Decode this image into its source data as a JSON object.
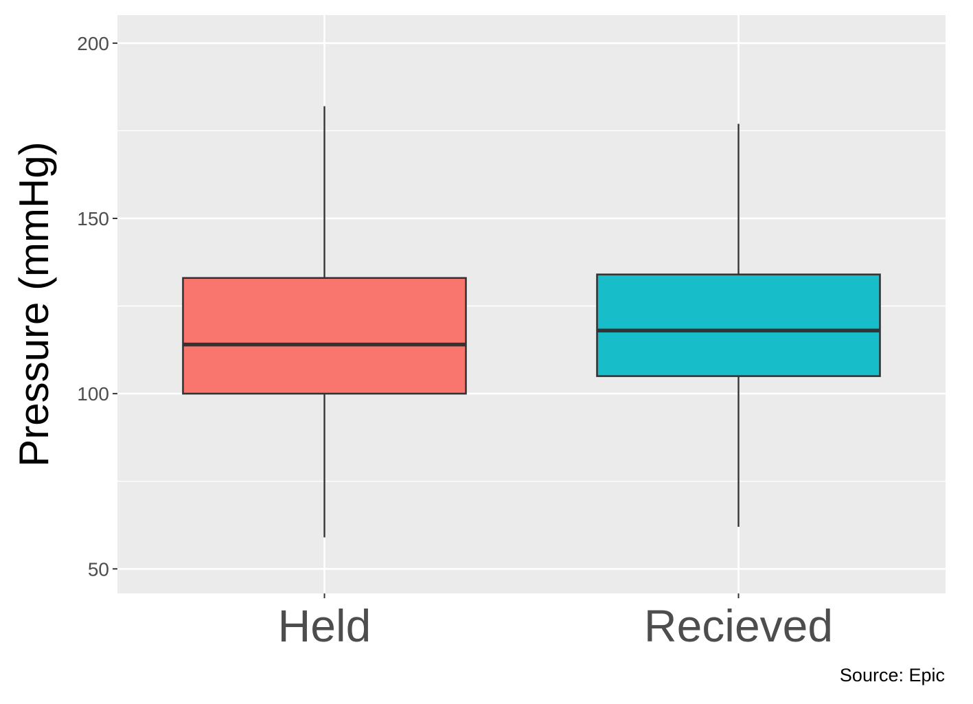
{
  "chart_data": {
    "type": "boxplot",
    "title": "",
    "xlabel": "",
    "ylabel": "Pressure (mmHg)",
    "ylim": [
      43,
      208
    ],
    "yticks": [
      50,
      100,
      150,
      200
    ],
    "categories": [
      "Held",
      "Recieved"
    ],
    "boxes": [
      {
        "category": "Held",
        "min": 59,
        "q1": 100,
        "median": 114,
        "q3": 133,
        "max": 182,
        "fill": "#F8766D"
      },
      {
        "category": "Recieved",
        "min": 62,
        "q1": 105,
        "median": 118,
        "q3": 134,
        "max": 177,
        "fill": "#17BECA"
      }
    ],
    "caption": "Source: Epic",
    "grid": true,
    "panel_color": "#EBEBEB",
    "grid_color": "#FFFFFF",
    "legend": "none"
  }
}
